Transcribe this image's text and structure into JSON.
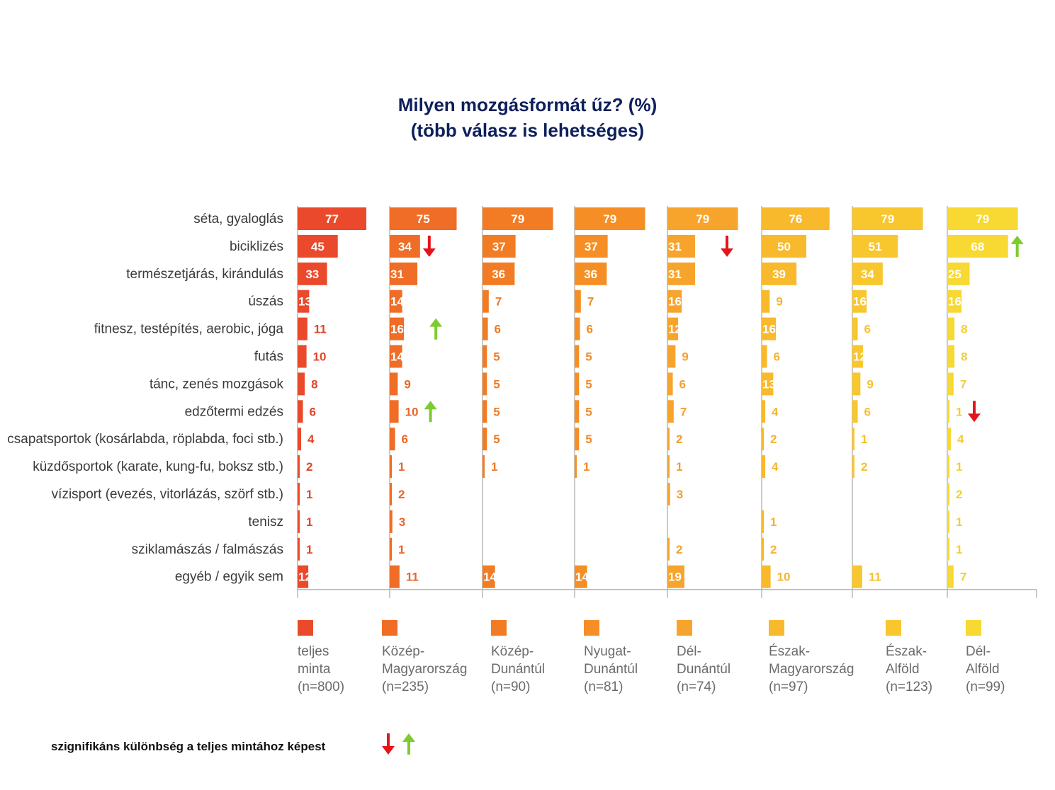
{
  "title": {
    "line1": "Milyen mozgásformát űz? (%)",
    "line2": "(több válasz is lehetséges)"
  },
  "chart_data": {
    "type": "bar",
    "title": "Milyen mozgásformát űz? (%) (több válasz is lehetséges)",
    "categories": [
      "séta, gyaloglás",
      "biciklizés",
      "természetjárás, kirándulás",
      "úszás",
      "fitnesz, testépítés, aerobic, jóga",
      "futás",
      "tánc, zenés mozgások",
      "edzőtermi edzés",
      "csapatsportok (kosárlabda, röplabda, foci stb.)",
      "küzdősportok (karate, kung-fu, boksz stb.)",
      "vízisport (evezés, vitorlázás, szörf stb.)",
      "tenisz",
      "sziklamászás / falmászás",
      "egyéb / egyik sem"
    ],
    "series": [
      {
        "name": "teljes minta (n=800)",
        "legend": [
          "teljes",
          "minta",
          "(n=800)"
        ],
        "color": "#ea4a2b",
        "label_color": "#e2452a",
        "values": [
          77,
          45,
          33,
          13,
          11,
          10,
          8,
          6,
          4,
          2,
          1,
          1,
          1,
          12
        ]
      },
      {
        "name": "Közép-Magyarország (n=235)",
        "legend": [
          "Közép-",
          "Magyarország",
          "(n=235)"
        ],
        "color": "#ef6d26",
        "label_color": "#e9662a",
        "values": [
          75,
          34,
          31,
          14,
          16,
          14,
          9,
          10,
          6,
          1,
          2,
          3,
          1,
          11
        ]
      },
      {
        "name": "Közép-Dunántúl (n=90)",
        "legend": [
          "Közép-",
          "Dunántúl",
          "(n=90)"
        ],
        "color": "#f27c24",
        "label_color": "#ee7a26",
        "values": [
          79,
          37,
          36,
          7,
          6,
          5,
          5,
          5,
          5,
          1,
          null,
          null,
          null,
          14
        ]
      },
      {
        "name": "Nyugat-Dunántúl (n=81)",
        "legend": [
          "Nyugat-",
          "Dunántúl",
          "(n=81)"
        ],
        "color": "#f58f25",
        "label_color": "#f18b27",
        "values": [
          79,
          37,
          36,
          7,
          6,
          5,
          5,
          5,
          5,
          1,
          null,
          null,
          null,
          14
        ]
      },
      {
        "name": "Dél-Dunántúl (n=74)",
        "legend": [
          "Dél-",
          "Dunántúl",
          "(n=74)"
        ],
        "color": "#f7a42c",
        "label_color": "#f39f2e",
        "values": [
          79,
          31,
          31,
          16,
          12,
          9,
          6,
          7,
          2,
          1,
          3,
          null,
          2,
          19
        ]
      },
      {
        "name": "Észak-Magyarország (n=97)",
        "legend": [
          "Észak-",
          "Magyarország",
          "(n=97)"
        ],
        "color": "#f8b92c",
        "label_color": "#f4b430",
        "values": [
          76,
          50,
          39,
          9,
          16,
          6,
          13,
          4,
          2,
          4,
          null,
          1,
          2,
          10
        ]
      },
      {
        "name": "Észak-Alföld (n=123)",
        "legend": [
          "Észak-",
          "Alföld",
          "(n=123)"
        ],
        "color": "#f8c62d",
        "label_color": "#f4c131",
        "values": [
          79,
          51,
          34,
          16,
          6,
          12,
          9,
          6,
          1,
          2,
          null,
          null,
          null,
          11
        ]
      },
      {
        "name": "Dél-Alföld (n=99)",
        "legend": [
          "Dél-",
          "Alföld",
          "(n=99)"
        ],
        "color": "#f8d832",
        "label_color": "#f1cf35",
        "values": [
          79,
          68,
          25,
          16,
          8,
          8,
          7,
          1,
          4,
          1,
          2,
          1,
          1,
          7
        ]
      }
    ],
    "significance": [
      {
        "series": 1,
        "category": 1,
        "direction": "down"
      },
      {
        "series": 1,
        "category": 4,
        "direction": "up"
      },
      {
        "series": 1,
        "category": 7,
        "direction": "up"
      },
      {
        "series": 4,
        "category": 1,
        "direction": "down"
      },
      {
        "series": 7,
        "category": 1,
        "direction": "up"
      },
      {
        "series": 7,
        "category": 7,
        "direction": "down"
      }
    ],
    "xlim": [
      0,
      100
    ],
    "grid": false,
    "legend_position": "bottom"
  },
  "note": {
    "text": "szignifikáns különbség a teljes mintához képest",
    "down_color": "#e3151b",
    "up_color": "#7ccc2e"
  }
}
